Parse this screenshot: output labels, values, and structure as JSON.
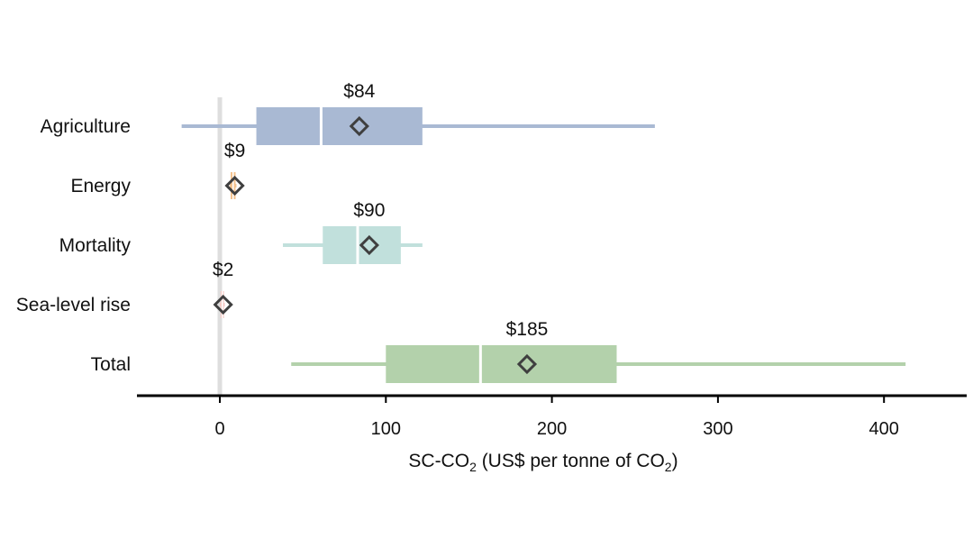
{
  "chart_data": {
    "type": "box",
    "orientation": "horizontal",
    "xlabel": {
      "pre": "SC-CO",
      "sub1": "2",
      "mid": " (US$ per tonne of CO",
      "sub2": "2",
      "post": ")"
    },
    "xlim": [
      -50,
      450
    ],
    "xticks": [
      0,
      100,
      200,
      300,
      400
    ],
    "zero_line": true,
    "series": [
      {
        "category": "Agriculture",
        "whisker_low": -23,
        "q1": 22,
        "median": 61,
        "q3": 122,
        "whisker_high": 262,
        "mean": 84,
        "mean_label": "$84",
        "color": "#a9b9d3"
      },
      {
        "category": "Energy",
        "whisker_low": 6,
        "q1": 6.5,
        "median": 8,
        "q3": 9.5,
        "whisker_high": 10,
        "mean": 9,
        "mean_label": "$9",
        "color": "#f4c38f"
      },
      {
        "category": "Mortality",
        "whisker_low": 38,
        "q1": 62,
        "median": 83,
        "q3": 109,
        "whisker_high": 122,
        "mean": 90,
        "mean_label": "$90",
        "color": "#c1e0dc"
      },
      {
        "category": "Sea-level rise",
        "whisker_low": 0,
        "q1": 0.5,
        "median": 1.5,
        "q3": 2.5,
        "whisker_high": 3,
        "mean": 2,
        "mean_label": "$2",
        "color": "#f6c9c4"
      },
      {
        "category": "Total",
        "whisker_low": 43,
        "q1": 100,
        "median": 157,
        "q3": 239,
        "whisker_high": 413,
        "mean": 185,
        "mean_label": "$185",
        "color": "#b3d1ab"
      }
    ]
  }
}
